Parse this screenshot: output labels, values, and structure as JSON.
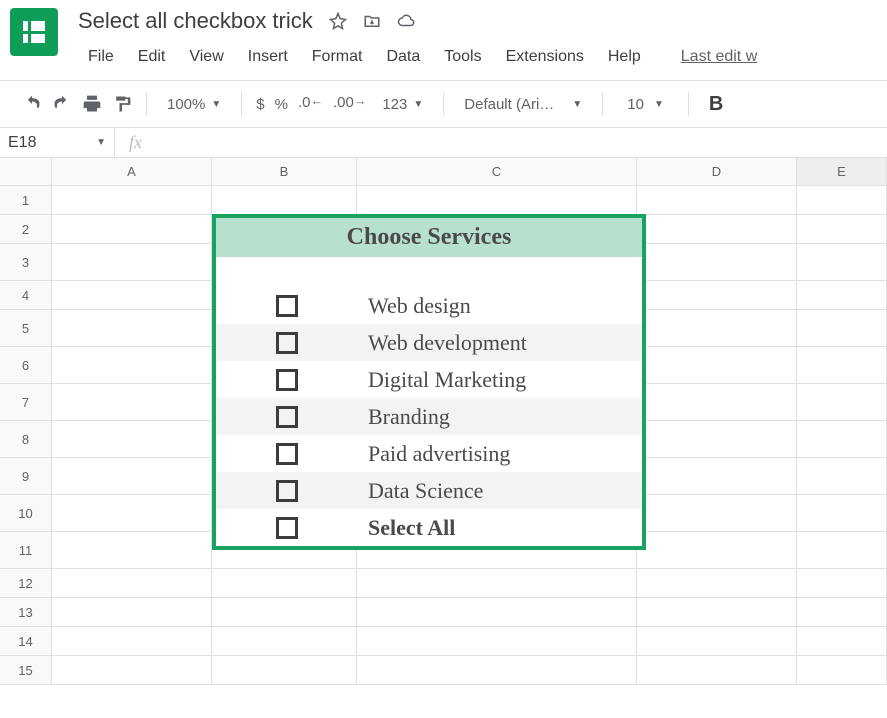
{
  "doc_title": "Select all checkbox trick",
  "menu": {
    "file": "File",
    "edit": "Edit",
    "view": "View",
    "insert": "Insert",
    "format": "Format",
    "data": "Data",
    "tools": "Tools",
    "extensions": "Extensions",
    "help": "Help",
    "last_edit": "Last edit w"
  },
  "toolbar": {
    "zoom": "100%",
    "dollar": "$",
    "percent": "%",
    "dec0": ".0",
    "dec00": ".00",
    "one23": "123",
    "font_name": "Default (Ari…",
    "font_size": "10",
    "bold": "B"
  },
  "namebox": "E18",
  "fx_label": "fx",
  "columns": [
    "A",
    "B",
    "C",
    "D",
    "E"
  ],
  "rows": [
    "1",
    "2",
    "3",
    "4",
    "5",
    "6",
    "7",
    "8",
    "9",
    "10",
    "11",
    "12",
    "13",
    "14",
    "15"
  ],
  "services": {
    "title": "Choose Services",
    "title_bg": "#b7e1cd",
    "border_color": "#1aa260",
    "alt_row_bg": "#f3f3f3",
    "title_fontsize": 24,
    "label_fontsize": 22,
    "items": [
      {
        "label": "Web design",
        "checked": false,
        "alt": false,
        "bold": false
      },
      {
        "label": "Web development",
        "checked": false,
        "alt": true,
        "bold": false
      },
      {
        "label": "Digital Marketing",
        "checked": false,
        "alt": false,
        "bold": false
      },
      {
        "label": "Branding",
        "checked": false,
        "alt": true,
        "bold": false
      },
      {
        "label": "Paid advertising",
        "checked": false,
        "alt": false,
        "bold": false
      },
      {
        "label": "Data Science",
        "checked": false,
        "alt": true,
        "bold": false
      },
      {
        "label": "Select All",
        "checked": false,
        "alt": false,
        "bold": true
      }
    ]
  },
  "colors": {
    "brand_green": "#0f9d58",
    "grid_line": "#e0e0e0",
    "header_bg": "#f8f9fa",
    "text": "#3c4043",
    "muted": "#5f6368"
  }
}
